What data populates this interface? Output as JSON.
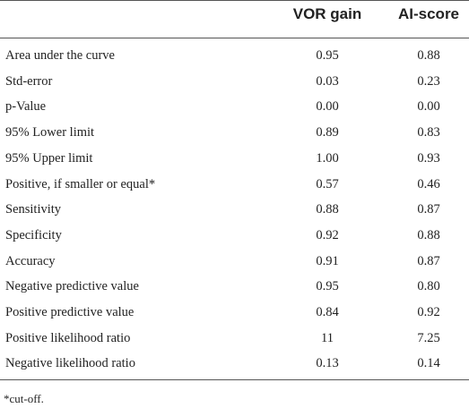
{
  "table": {
    "header": [
      "VOR gain",
      "AI-score"
    ],
    "rows": [
      [
        "Area under the curve",
        "0.95",
        "0.88"
      ],
      [
        "Std-error",
        "0.03",
        "0.23"
      ],
      [
        "p-Value",
        "0.00",
        "0.00"
      ],
      [
        "95% Lower limit",
        "0.89",
        "0.83"
      ],
      [
        "95% Upper limit",
        "1.00",
        "0.93"
      ],
      [
        "Positive, if smaller or equal*",
        "0.57",
        "0.46"
      ],
      [
        "Sensitivity",
        "0.88",
        "0.87"
      ],
      [
        "Specificity",
        "0.92",
        "0.88"
      ],
      [
        "Accuracy",
        "0.91",
        "0.87"
      ],
      [
        "Negative predictive value",
        "0.95",
        "0.80"
      ],
      [
        "Positive predictive value",
        "0.84",
        "0.92"
      ],
      [
        "Positive likelihood ratio",
        "11",
        "7.25"
      ],
      [
        "Negative likelihood ratio",
        "0.13",
        "0.14"
      ]
    ],
    "footnote": "*cut-off."
  }
}
